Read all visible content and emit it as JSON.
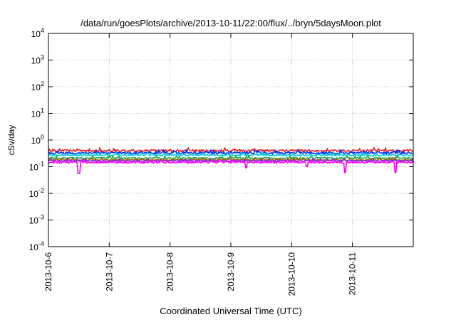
{
  "chart_data": {
    "type": "line",
    "title": "/data/run/goesPlots/archive/2013-10-11/22:00/flux/../bryn/5daysMoon.plot",
    "xlabel": "Coordinated Universal Time (UTC)",
    "ylabel": "cSv/day",
    "yscale": "log",
    "ylim": [
      0.0001,
      10000
    ],
    "xlim": [
      "2013-10-06",
      "2013-10-12"
    ],
    "x_ticks": [
      "2013-10-6",
      "2013-10-7",
      "2013-10-8",
      "2013-10-9",
      "2013-10-10",
      "2013-10-11"
    ],
    "y_ticks": [
      {
        "base": "10",
        "exp": "-4",
        "value": 0.0001
      },
      {
        "base": "10",
        "exp": "-3",
        "value": 0.001
      },
      {
        "base": "10",
        "exp": "-2",
        "value": 0.01
      },
      {
        "base": "10",
        "exp": "-1",
        "value": 0.1
      },
      {
        "base": "10",
        "exp": "0",
        "value": 1
      },
      {
        "base": "10",
        "exp": "1",
        "value": 10
      },
      {
        "base": "10",
        "exp": "2",
        "value": 100
      },
      {
        "base": "10",
        "exp": "3",
        "value": 1000
      },
      {
        "base": "10",
        "exp": "4",
        "value": 10000
      }
    ],
    "grid": true,
    "series": [
      {
        "color": "#e8222a",
        "level": 0.4,
        "noise": 0.1,
        "dips": []
      },
      {
        "color": "#0033ff",
        "level": 0.33,
        "noise": 0.1,
        "dips": []
      },
      {
        "color": "#00c8e0",
        "level": 0.27,
        "noise": 0.07,
        "dips": []
      },
      {
        "color": "#22aa44",
        "level": 0.21,
        "noise": 0.06,
        "dips": []
      },
      {
        "color": "#9b6a1c",
        "level": 0.18,
        "noise": 0.05,
        "dips": []
      },
      {
        "color": "#8a2be2",
        "level": 0.165,
        "noise": 0.05,
        "dips": []
      },
      {
        "color": "#ff00ff",
        "level": 0.145,
        "noise": 0.08,
        "dips": [
          [
            "2013-10-06T12:00",
            0.055
          ],
          [
            "2013-10-09T06:00",
            0.09
          ],
          [
            "2013-10-10T06:00",
            0.1
          ],
          [
            "2013-10-10T21:00",
            0.06
          ],
          [
            "2013-10-11T17:00",
            0.06
          ]
        ]
      }
    ]
  }
}
